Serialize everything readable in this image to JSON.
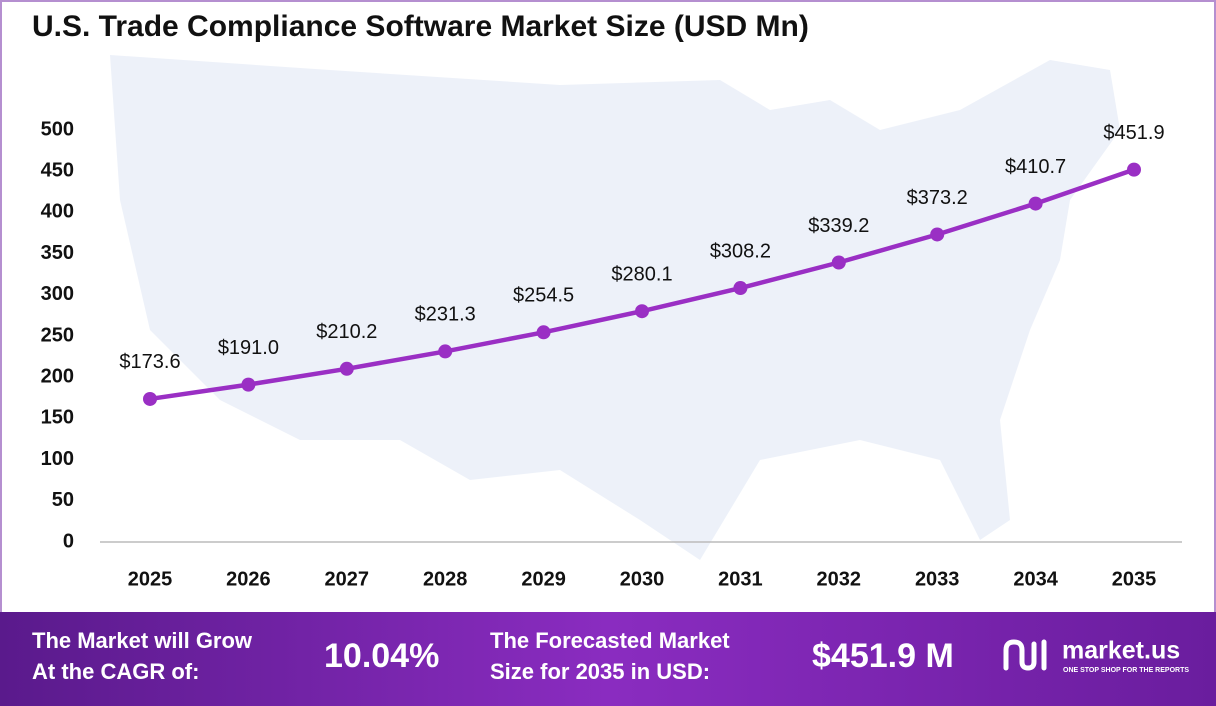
{
  "chart_data": {
    "type": "line",
    "title": "U.S. Trade Compliance Software Market Size (USD Mn)",
    "categories": [
      "2025",
      "2026",
      "2027",
      "2028",
      "2029",
      "2030",
      "2031",
      "2032",
      "2033",
      "2034",
      "2035"
    ],
    "series": [
      {
        "name": "Market Size",
        "color": "#9a2fc4",
        "values": [
          173.6,
          191.0,
          210.2,
          231.3,
          254.5,
          280.1,
          308.2,
          339.2,
          373.2,
          410.7,
          451.9
        ],
        "value_labels": [
          "$173.6",
          "$191.0",
          "$210.2",
          "$231.3",
          "$254.5",
          "$280.1",
          "$308.2",
          "$339.2",
          "$373.2",
          "$410.7",
          "$451.9"
        ]
      }
    ],
    "ylim": [
      0,
      500
    ],
    "yticks": [
      0,
      50,
      100,
      150,
      200,
      250,
      300,
      350,
      400,
      450,
      500
    ],
    "grid": false
  },
  "footer": {
    "cagr_label": [
      "The Market will Grow",
      "At the CAGR of:"
    ],
    "cagr_value": "10.04%",
    "forecast_label": [
      "The Forecasted Market",
      "Size for 2035 in USD:"
    ],
    "forecast_value": "$451.9 M",
    "brand": "market.us",
    "tagline": "ONE STOP SHOP FOR THE REPORTS"
  }
}
